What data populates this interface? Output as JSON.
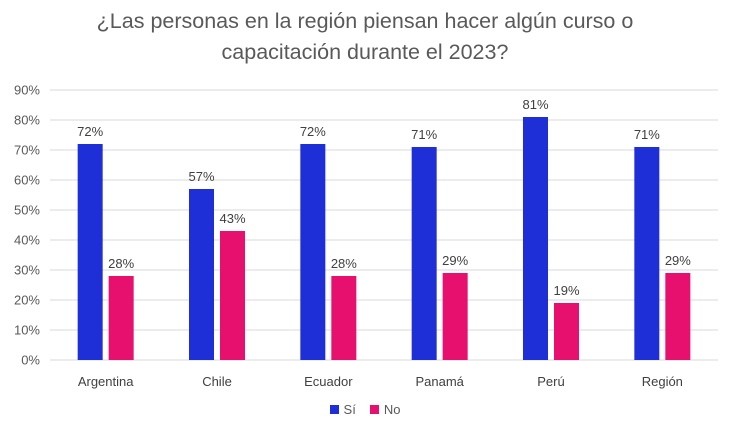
{
  "chart_data": {
    "type": "bar",
    "title_lines": [
      "¿Las personas en la región piensan hacer algún curso o",
      "capacitación durante el 2023?"
    ],
    "categories": [
      "Argentina",
      "Chile",
      "Ecuador",
      "Panamá",
      "Perú",
      "Región"
    ],
    "series": [
      {
        "name": "Sí",
        "color": "#1F2FD8",
        "values": [
          72,
          57,
          72,
          71,
          81,
          71
        ],
        "labels": [
          "72%",
          "57%",
          "72%",
          "71%",
          "81%",
          "71%"
        ]
      },
      {
        "name": "No",
        "color": "#E8106F",
        "values": [
          28,
          43,
          28,
          29,
          19,
          29
        ],
        "labels": [
          "28%",
          "43%",
          "28%",
          "29%",
          "19%",
          "29%"
        ]
      }
    ],
    "ylim": [
      0,
      90
    ],
    "yticks": [
      0,
      10,
      20,
      30,
      40,
      50,
      60,
      70,
      80,
      90
    ],
    "ytick_labels": [
      "0%",
      "10%",
      "20%",
      "30%",
      "40%",
      "50%",
      "60%",
      "70%",
      "80%",
      "90%"
    ],
    "grid": true,
    "legend_position": "bottom"
  }
}
